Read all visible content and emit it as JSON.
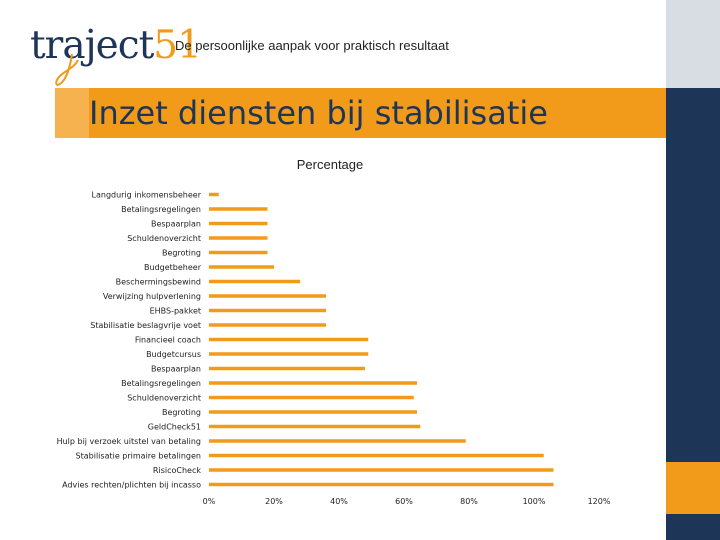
{
  "header": {
    "logo_text": "traject",
    "logo_number": "51",
    "tagline": "De persoonlijke aanpak voor praktisch resultaat"
  },
  "slide": {
    "title": "Inzet diensten bij stabilisatie"
  },
  "colors": {
    "bar": "#f29a1a",
    "brand_navy": "#1d3557",
    "brand_orange": "#f29a1a"
  },
  "chart_data": {
    "type": "bar",
    "orientation": "horizontal",
    "title": "Percentage",
    "xlim": [
      0,
      1.2
    ],
    "x_ticks": [
      "0%",
      "20%",
      "40%",
      "60%",
      "80%",
      "100%",
      "120%"
    ],
    "grid": false,
    "legend": "none",
    "categories": [
      "Langdurig inkomensbeheer",
      "Betalingsregelingen",
      "Bespaarplan",
      "Schuldenoverzicht",
      "Begroting",
      "Budgetbeheer",
      "Beschermingsbewind",
      "Verwijzing hulpverlening",
      "EHBS-pakket",
      "Stabilisatie beslagvrije voet",
      "Financieel coach",
      "Budgetcursus",
      "Bespaarplan",
      "Betalingsregelingen",
      "Schuldenoverzicht",
      "Begroting",
      "GeldCheck51",
      "Hulp bij verzoek uitstel van betaling",
      "Stabilisatie primaire betalingen",
      "RisicoCheck",
      "Advies rechten/plichten bij incasso"
    ],
    "values": [
      0.03,
      0.18,
      0.18,
      0.18,
      0.18,
      0.2,
      0.28,
      0.36,
      0.36,
      0.36,
      0.49,
      0.49,
      0.48,
      0.64,
      0.63,
      0.64,
      0.65,
      0.79,
      1.03,
      1.06,
      1.06
    ]
  }
}
